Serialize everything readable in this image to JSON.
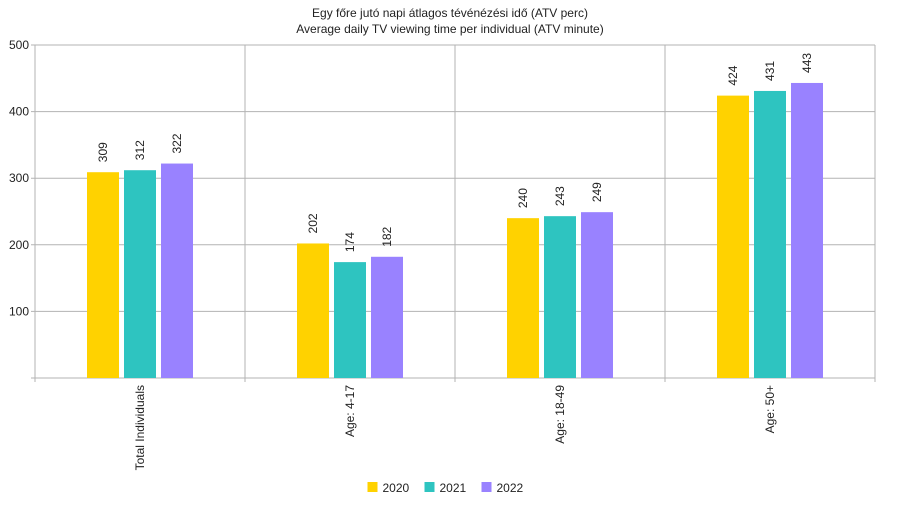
{
  "chart_data": {
    "type": "bar",
    "title": "Egy főre jutó napi átlagos tévénézési idő (ATV perc)",
    "subtitle": "Average daily TV viewing time per individual (ATV minute)",
    "categories": [
      "Total Individuals",
      "Age: 4-17",
      "Age: 18-49",
      "Age: 50+"
    ],
    "series": [
      {
        "name": "2020",
        "color": "#ffd200",
        "values": [
          309,
          202,
          240,
          424
        ]
      },
      {
        "name": "2021",
        "color": "#2ec4c0",
        "values": [
          312,
          174,
          243,
          431
        ]
      },
      {
        "name": "2022",
        "color": "#9982ff",
        "values": [
          322,
          182,
          249,
          443
        ]
      }
    ],
    "yticks": [
      100,
      200,
      300,
      400,
      500
    ],
    "ylim": [
      0,
      500
    ],
    "grid": true,
    "legend": "bottom-center"
  }
}
